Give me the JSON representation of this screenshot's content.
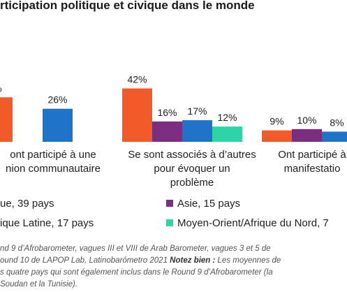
{
  "chart_data": {
    "type": "bar",
    "title": "rticipation politique et civique dans le monde",
    "xlabel": "",
    "ylabel": "",
    "ylim": [
      0,
      60
    ],
    "grid": false,
    "legend_position": "bottom",
    "categories": [
      [
        "ont participé à une",
        "nion communautaire"
      ],
      [
        "Se sont associés à d’autres",
        "pour évoquer un",
        "problème"
      ],
      [
        "Ont participé à",
        "manifestatio"
      ]
    ],
    "series": [
      {
        "name": "ue, 39 pays",
        "color": "#f15a29",
        "values": [
          35,
          42,
          9
        ],
        "labels": [
          "%",
          "42%",
          "9%"
        ]
      },
      {
        "name": "Asie, 15 pays",
        "color": "#7b2d7f",
        "values": [
          null,
          16,
          10
        ],
        "labels": [
          "",
          "16%",
          "10%"
        ]
      },
      {
        "name": "ique Latine, 17 pays",
        "color": "#1f74c9",
        "values": [
          26,
          17,
          8
        ],
        "labels": [
          "26%",
          "17%",
          "8%"
        ]
      },
      {
        "name": "Moyen-Orient/Afrique du Nord, 7",
        "color": "#2dd4a5",
        "values": [
          null,
          12,
          null
        ],
        "labels": [
          "",
          "12%",
          ""
        ]
      }
    ]
  },
  "footer": {
    "line1_a": "nd 9 d’Afrobarometer, vagues III et VIII de Arab Barometer, vagues 3 et 5 de",
    "line2_a": "ound 10 de LAPOP Lab, Latinobarómetro 2021 ",
    "line2_bold": "Notez bien :",
    "line2_b": " Les moyennes de",
    "line3_a": "s quatre pays qui sont également inclus dans le Round 9 d’Afrobarometer (la",
    "line4_a": "Soudan et la Tunisie)."
  }
}
